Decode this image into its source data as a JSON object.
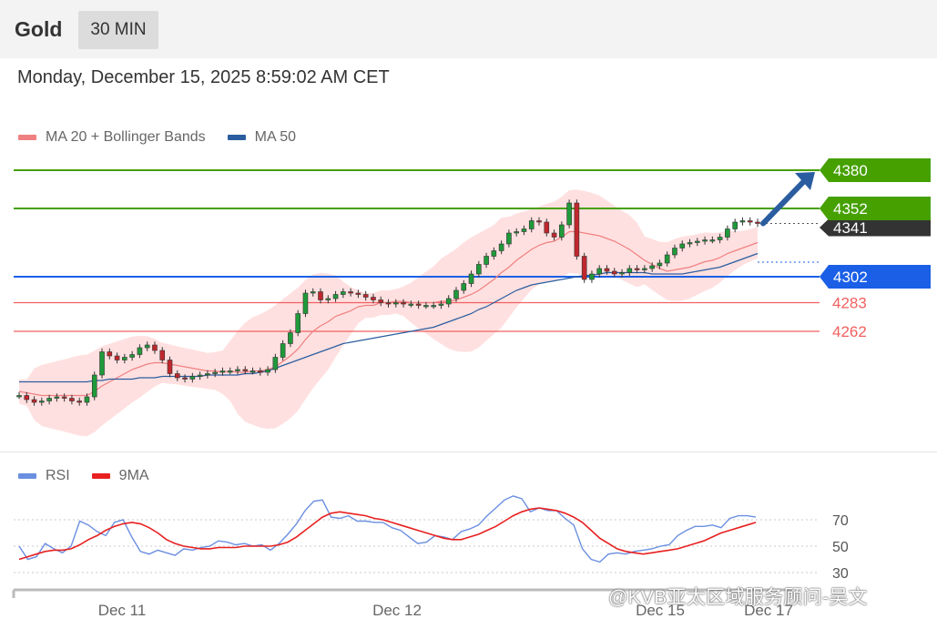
{
  "header": {
    "asset": "Gold",
    "interval": "30 MIN"
  },
  "timestamp": "Monday, December 15, 2025 8:59:02 AM CET",
  "legend_price": [
    {
      "label": "MA 20 + Bollinger Bands",
      "color": "#f08080"
    },
    {
      "label": "MA 50",
      "color": "#2a5d9f"
    }
  ],
  "legend_rsi": [
    {
      "label": "RSI",
      "color": "#6b8fe0"
    },
    {
      "label": "9MA",
      "color": "#e82020"
    }
  ],
  "watermark": "@KVB亚太区域服务顾问-吴文",
  "chart_data": [
    {
      "type": "candlestick",
      "title": "",
      "ylim": [
        4200,
        4395
      ],
      "x_ticks": [
        "Dec 11",
        "Dec 12",
        "Dec 15",
        "Dec 17"
      ],
      "current_price": 4341,
      "levels": [
        {
          "value": 4380,
          "label": "4380",
          "kind": "resistance",
          "color": "#45a000"
        },
        {
          "value": 4352,
          "label": "4352",
          "kind": "resistance",
          "color": "#45a000"
        },
        {
          "value": 4341,
          "label": "4341",
          "kind": "current",
          "color": "#333333"
        },
        {
          "value": 4302,
          "label": "4302",
          "kind": "pivot",
          "color": "#1a5fe6"
        },
        {
          "value": 4283,
          "label": "4283",
          "kind": "support",
          "color": "#f26060"
        },
        {
          "value": 4262,
          "label": "4262",
          "kind": "support",
          "color": "#f26060"
        }
      ],
      "projection": {
        "from": 4341,
        "to": 4380,
        "direction": "up"
      },
      "close_series": [
        4215,
        4212,
        4210,
        4211,
        4213,
        4214,
        4213,
        4211,
        4210,
        4214,
        4230,
        4247,
        4244,
        4241,
        4243,
        4245,
        4250,
        4252,
        4248,
        4241,
        4231,
        4228,
        4227,
        4229,
        4230,
        4231,
        4232,
        4233,
        4233,
        4234,
        4233,
        4233,
        4232,
        4234,
        4243,
        4253,
        4261,
        4275,
        4290,
        4291,
        4285,
        4286,
        4289,
        4291,
        4290,
        4289,
        4287,
        4285,
        4283,
        4282,
        4283,
        4282,
        4282,
        4281,
        4281,
        4281,
        4282,
        4286,
        4292,
        4297,
        4304,
        4311,
        4317,
        4321,
        4326,
        4334,
        4335,
        4337,
        4343,
        4342,
        4334,
        4331,
        4340,
        4356,
        4317,
        4300,
        4304,
        4308,
        4306,
        4304,
        4305,
        4308,
        4307,
        4308,
        4310,
        4312,
        4318,
        4323,
        4326,
        4327,
        4328,
        4329,
        4329,
        4331,
        4337,
        4342,
        4343,
        4342,
        4341
      ],
      "ma20": [
        4218,
        4217,
        4216,
        4215,
        4215,
        4215,
        4215,
        4215,
        4215,
        4215,
        4218,
        4222,
        4225,
        4228,
        4231,
        4234,
        4236,
        4238,
        4239,
        4239,
        4238,
        4237,
        4236,
        4235,
        4234,
        4233,
        4233,
        4232,
        4233,
        4232,
        4232,
        4233,
        4233,
        4234,
        4236,
        4240,
        4244,
        4249,
        4256,
        4262,
        4266,
        4269,
        4273,
        4275,
        4277,
        4280,
        4281,
        4281,
        4283,
        4283,
        4284,
        4284,
        4283,
        4283,
        4283,
        4283,
        4284,
        4284,
        4285,
        4287,
        4289,
        4292,
        4296,
        4300,
        4305,
        4309,
        4314,
        4318,
        4322,
        4325,
        4327,
        4328,
        4331,
        4335,
        4335,
        4334,
        4333,
        4332,
        4330,
        4328,
        4325,
        4322,
        4318,
        4314,
        4311,
        4308,
        4306,
        4307,
        4308,
        4309,
        4311,
        4313,
        4314,
        4316,
        4319,
        4321,
        4323,
        4325,
        4327
      ],
      "ma50": [
        4225,
        4225,
        4225,
        4225,
        4225,
        4225,
        4225,
        4225,
        4225,
        4225,
        4226,
        4226,
        4227,
        4227,
        4227,
        4227,
        4228,
        4228,
        4228,
        4229,
        4229,
        4229,
        4229,
        4229,
        4229,
        4230,
        4230,
        4230,
        4230,
        4230,
        4231,
        4231,
        4232,
        4233,
        4235,
        4237,
        4239,
        4241,
        4243,
        4245,
        4247,
        4249,
        4251,
        4253,
        4254,
        4255,
        4256,
        4257,
        4258,
        4259,
        4260,
        4261,
        4262,
        4263,
        4264,
        4265,
        4267,
        4269,
        4271,
        4273,
        4275,
        4278,
        4280,
        4283,
        4286,
        4289,
        4292,
        4294,
        4296,
        4297,
        4298,
        4299,
        4300,
        4301,
        4302,
        4303,
        4303,
        4304,
        4305,
        4305,
        4305,
        4305,
        4305,
        4305,
        4304,
        4304,
        4304,
        4304,
        4304,
        4305,
        4306,
        4307,
        4308,
        4309,
        4311,
        4313,
        4315,
        4317,
        4319
      ]
    },
    {
      "type": "line",
      "title": "",
      "ylim": [
        25,
        90
      ],
      "y_ticks": [
        70,
        50,
        30
      ],
      "series": [
        {
          "name": "RSI",
          "color": "#6b8fe0",
          "values": [
            50,
            40,
            42,
            52,
            48,
            45,
            50,
            69,
            66,
            61,
            58,
            68,
            70,
            57,
            46,
            44,
            47,
            45,
            43,
            48,
            47,
            49,
            50,
            54,
            53,
            51,
            52,
            50,
            51,
            47,
            52,
            59,
            67,
            77,
            84,
            85,
            72,
            71,
            73,
            69,
            69,
            68,
            68,
            64,
            62,
            57,
            52,
            53,
            58,
            57,
            55,
            61,
            63,
            66,
            73,
            79,
            85,
            88,
            86,
            76,
            79,
            77,
            77,
            71,
            66,
            48,
            40,
            38,
            44,
            45,
            44,
            46,
            47,
            48,
            50,
            51,
            58,
            62,
            65,
            65,
            66,
            64,
            71,
            73,
            73,
            72
          ]
        },
        {
          "name": "9MA",
          "color": "#e82020",
          "values": [
            40,
            42,
            44,
            46,
            47,
            47,
            48,
            51,
            55,
            58,
            62,
            65,
            67,
            68,
            67,
            64,
            60,
            55,
            52,
            50,
            49,
            48,
            48,
            49,
            49,
            49,
            50,
            50,
            50,
            50,
            51,
            53,
            57,
            62,
            67,
            72,
            75,
            76,
            75,
            74,
            73,
            71,
            70,
            68,
            66,
            64,
            62,
            60,
            58,
            56,
            55,
            55,
            57,
            59,
            62,
            65,
            69,
            73,
            76,
            78,
            79,
            78,
            77,
            75,
            72,
            68,
            62,
            56,
            52,
            48,
            46,
            45,
            44,
            45,
            46,
            47,
            48,
            50,
            52,
            54,
            57,
            60,
            62,
            64,
            66,
            68
          ]
        }
      ]
    }
  ]
}
